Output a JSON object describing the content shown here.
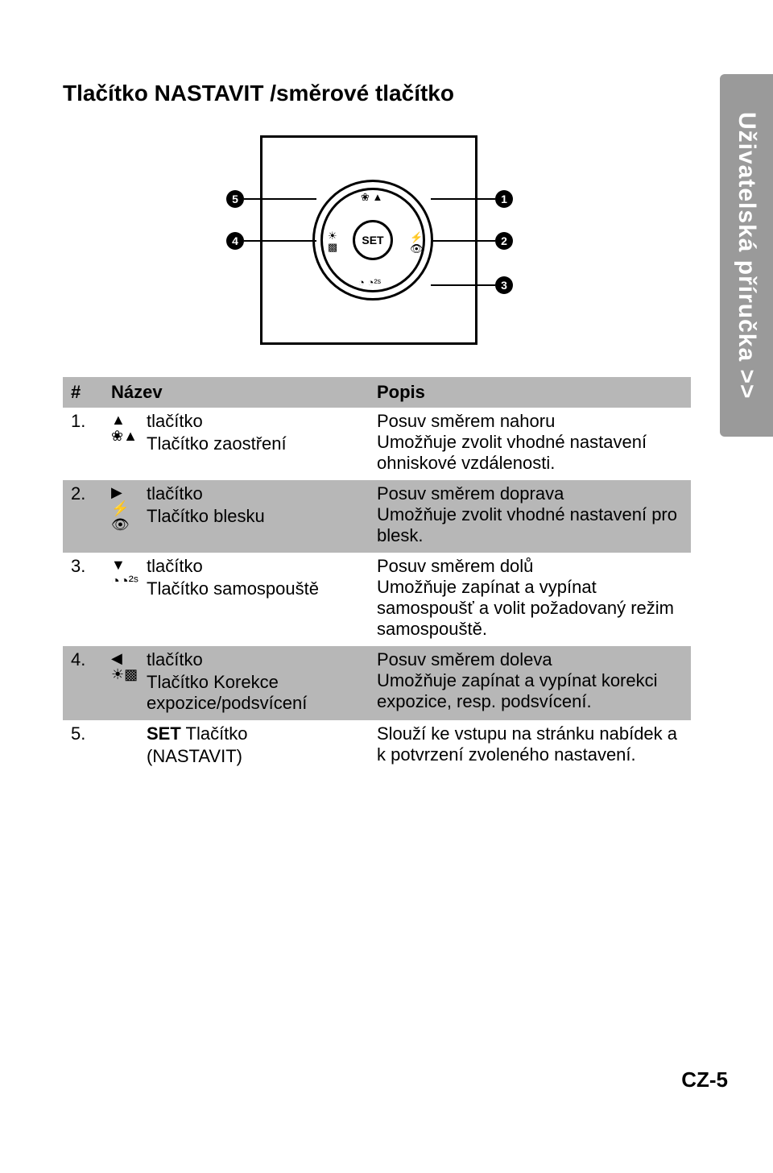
{
  "colors": {
    "grayBand": "#b7b7b7",
    "tab": "#9a9a9a",
    "text": "#000000",
    "bg": "#ffffff",
    "white": "#ffffff"
  },
  "sideTab": "Uživatelská příručka >>",
  "title": "Tlačítko NASTAVIT /směrové tlačítko",
  "diagram": {
    "center": "SET",
    "callouts": {
      "b1": "1",
      "b2": "2",
      "b3": "3",
      "b4": "4",
      "b5": "5"
    },
    "icons": {
      "top": "❀ ▲",
      "right1": "⚡",
      "right2": "👁",
      "bottom": "◔ ◔²ˢ",
      "left1": "☀",
      "left2": "▩"
    }
  },
  "tableHeader": {
    "num": "#",
    "name": "Název",
    "desc": "Popis"
  },
  "rows": [
    {
      "num": "1.",
      "gray": false,
      "icon1": "▲",
      "icon2": "❀▲",
      "nameL1": "tlačítko",
      "nameL2": "Tlačítko zaostření",
      "descL1": "Posuv směrem nahoru",
      "descL2": "Umožňuje zvolit vhodné nastavení ohniskové vzdálenosti.",
      "descL3": ""
    },
    {
      "num": "2.",
      "gray": true,
      "icon1": "▶",
      "icon2": "⚡👁",
      "nameL1": "tlačítko",
      "nameL2": "Tlačítko blesku",
      "descL1": "Posuv směrem doprava",
      "descL2": "Umožňuje zvolit vhodné nastavení pro blesk.",
      "descL3": ""
    },
    {
      "num": "3.",
      "gray": false,
      "icon1": "▼",
      "icon2": "◔◔²ˢ",
      "nameL1": "tlačítko",
      "nameL2": "Tlačítko samospouště",
      "descL1": "Posuv směrem dolů",
      "descL2": "Umožňuje zapínat a vypínat samospoušť a volit požadovaný režim samospouště.",
      "descL3": ""
    },
    {
      "num": "4.",
      "gray": true,
      "icon1": "◀",
      "icon2": "☀▩",
      "nameL1": "tlačítko",
      "nameL2": "Tlačítko Korekce expozice/podsvícení",
      "descL1": "Posuv směrem doleva",
      "descL2": "Umožňuje zapínat a vypínat korekci expozice, resp. podsvícení.",
      "descL3": ""
    },
    {
      "num": "5.",
      "gray": false,
      "icon1": "",
      "icon2": "",
      "nameL1": "SET Tlačítko",
      "nameL2": "(NASTAVIT)",
      "descL1": "Slouží ke vstupu na stránku nabídek a k potvrzení zvoleného nastavení.",
      "descL2": "",
      "descL3": ""
    }
  ],
  "pageNumber": "CZ-5"
}
